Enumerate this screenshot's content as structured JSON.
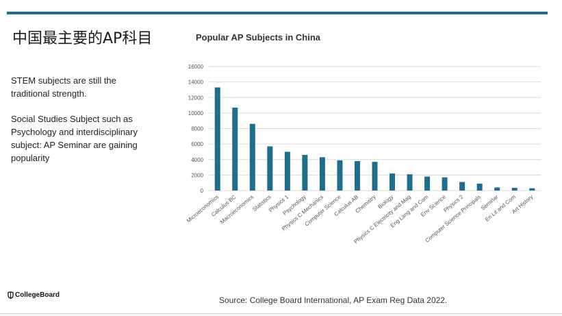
{
  "slide": {
    "title": "中国最主要的AP科目",
    "text_1": "STEM subjects are still the traditional strength.",
    "text_2": "Social Studies Subject such as Psychology and interdisciplinary subject: AP Seminar are gaining popularity",
    "source": "Source: College Board International, AP Exam Reg Data 2022.",
    "logo_text": "CollegeBoard",
    "accent_color": "#1f6e8c"
  },
  "chart_data": {
    "type": "bar",
    "title": "Popular AP Subjects in China",
    "xlabel": "",
    "ylabel": "",
    "categories": [
      "Microeconomics",
      "Calculus BC",
      "Macroeconomics",
      "Statistics",
      "Physics 1",
      "Psychology",
      "Physics C Mechanics",
      "Computer Science",
      "Calculus AB",
      "Chemistry",
      "Biology",
      "Physics C Electricity and Mag",
      "Eng Lang and Com",
      "Env Science",
      "Physics 2",
      "Computer Science Principals",
      "Seminar",
      "En Lit and Com",
      "Art History"
    ],
    "values": [
      13300,
      10700,
      8600,
      5700,
      5000,
      4600,
      4300,
      3900,
      3800,
      3700,
      2200,
      2100,
      1800,
      1700,
      1100,
      900,
      400,
      350,
      300
    ],
    "ylim": [
      0,
      16000
    ],
    "yticks": [
      0,
      2000,
      4000,
      6000,
      8000,
      10000,
      12000,
      14000,
      16000
    ],
    "grid": true,
    "bar_color": "#1f6e8c"
  }
}
